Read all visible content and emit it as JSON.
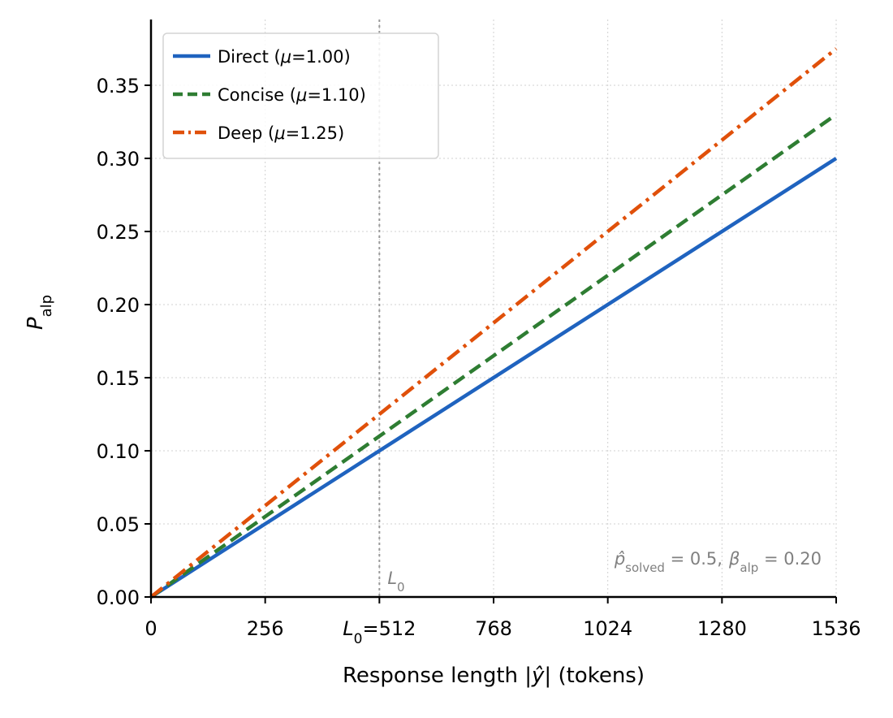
{
  "chart_data": {
    "type": "line",
    "xlabel_main": "Response length |",
    "xlabel_var": "ŷ",
    "xlabel_rest": "| (tokens)",
    "ylabel_main": "P",
    "ylabel_sub": "alp",
    "xlim": [
      0,
      1536
    ],
    "ylim": [
      0,
      0.395
    ],
    "x_ticks": [
      {
        "value": 0,
        "label": "0"
      },
      {
        "value": 256,
        "label": "256"
      },
      {
        "value": 512,
        "label": "=512",
        "prefix_main": "L",
        "prefix_sub": "0"
      },
      {
        "value": 768,
        "label": "768"
      },
      {
        "value": 1024,
        "label": "1024"
      },
      {
        "value": 1280,
        "label": "1280"
      },
      {
        "value": 1536,
        "label": "1536"
      }
    ],
    "y_ticks": [
      {
        "value": 0.0,
        "label": "0.00"
      },
      {
        "value": 0.05,
        "label": "0.05"
      },
      {
        "value": 0.1,
        "label": "0.10"
      },
      {
        "value": 0.15,
        "label": "0.15"
      },
      {
        "value": 0.2,
        "label": "0.20"
      },
      {
        "value": 0.25,
        "label": "0.25"
      },
      {
        "value": 0.3,
        "label": "0.30"
      },
      {
        "value": 0.35,
        "label": "0.35"
      }
    ],
    "grid": true,
    "legend_position": "top-left",
    "series": [
      {
        "name": "Direct",
        "mu_label": "μ",
        "mu_value": "=1.00",
        "color": "#1f63bf",
        "style": "solid",
        "x": [
          0,
          1536
        ],
        "y": [
          0.0,
          0.3
        ]
      },
      {
        "name": "Concise",
        "mu_label": "μ",
        "mu_value": "=1.10",
        "color": "#2e7d32",
        "style": "dashed",
        "x": [
          0,
          1536
        ],
        "y": [
          0.0,
          0.33
        ]
      },
      {
        "name": "Deep",
        "mu_label": "μ",
        "mu_value": "=1.25",
        "color": "#e0500a",
        "style": "dashdot",
        "x": [
          0,
          1536
        ],
        "y": [
          0.0,
          0.375
        ]
      }
    ],
    "reference_line": {
      "x": 512,
      "label_main": "L",
      "label_sub": "0"
    },
    "annotation": {
      "p_main": "p̂",
      "p_sub": "solved",
      "p_value": " = 0.5,",
      "b_main": "β",
      "b_sub": "alp",
      "b_value": " = 0.20"
    }
  }
}
